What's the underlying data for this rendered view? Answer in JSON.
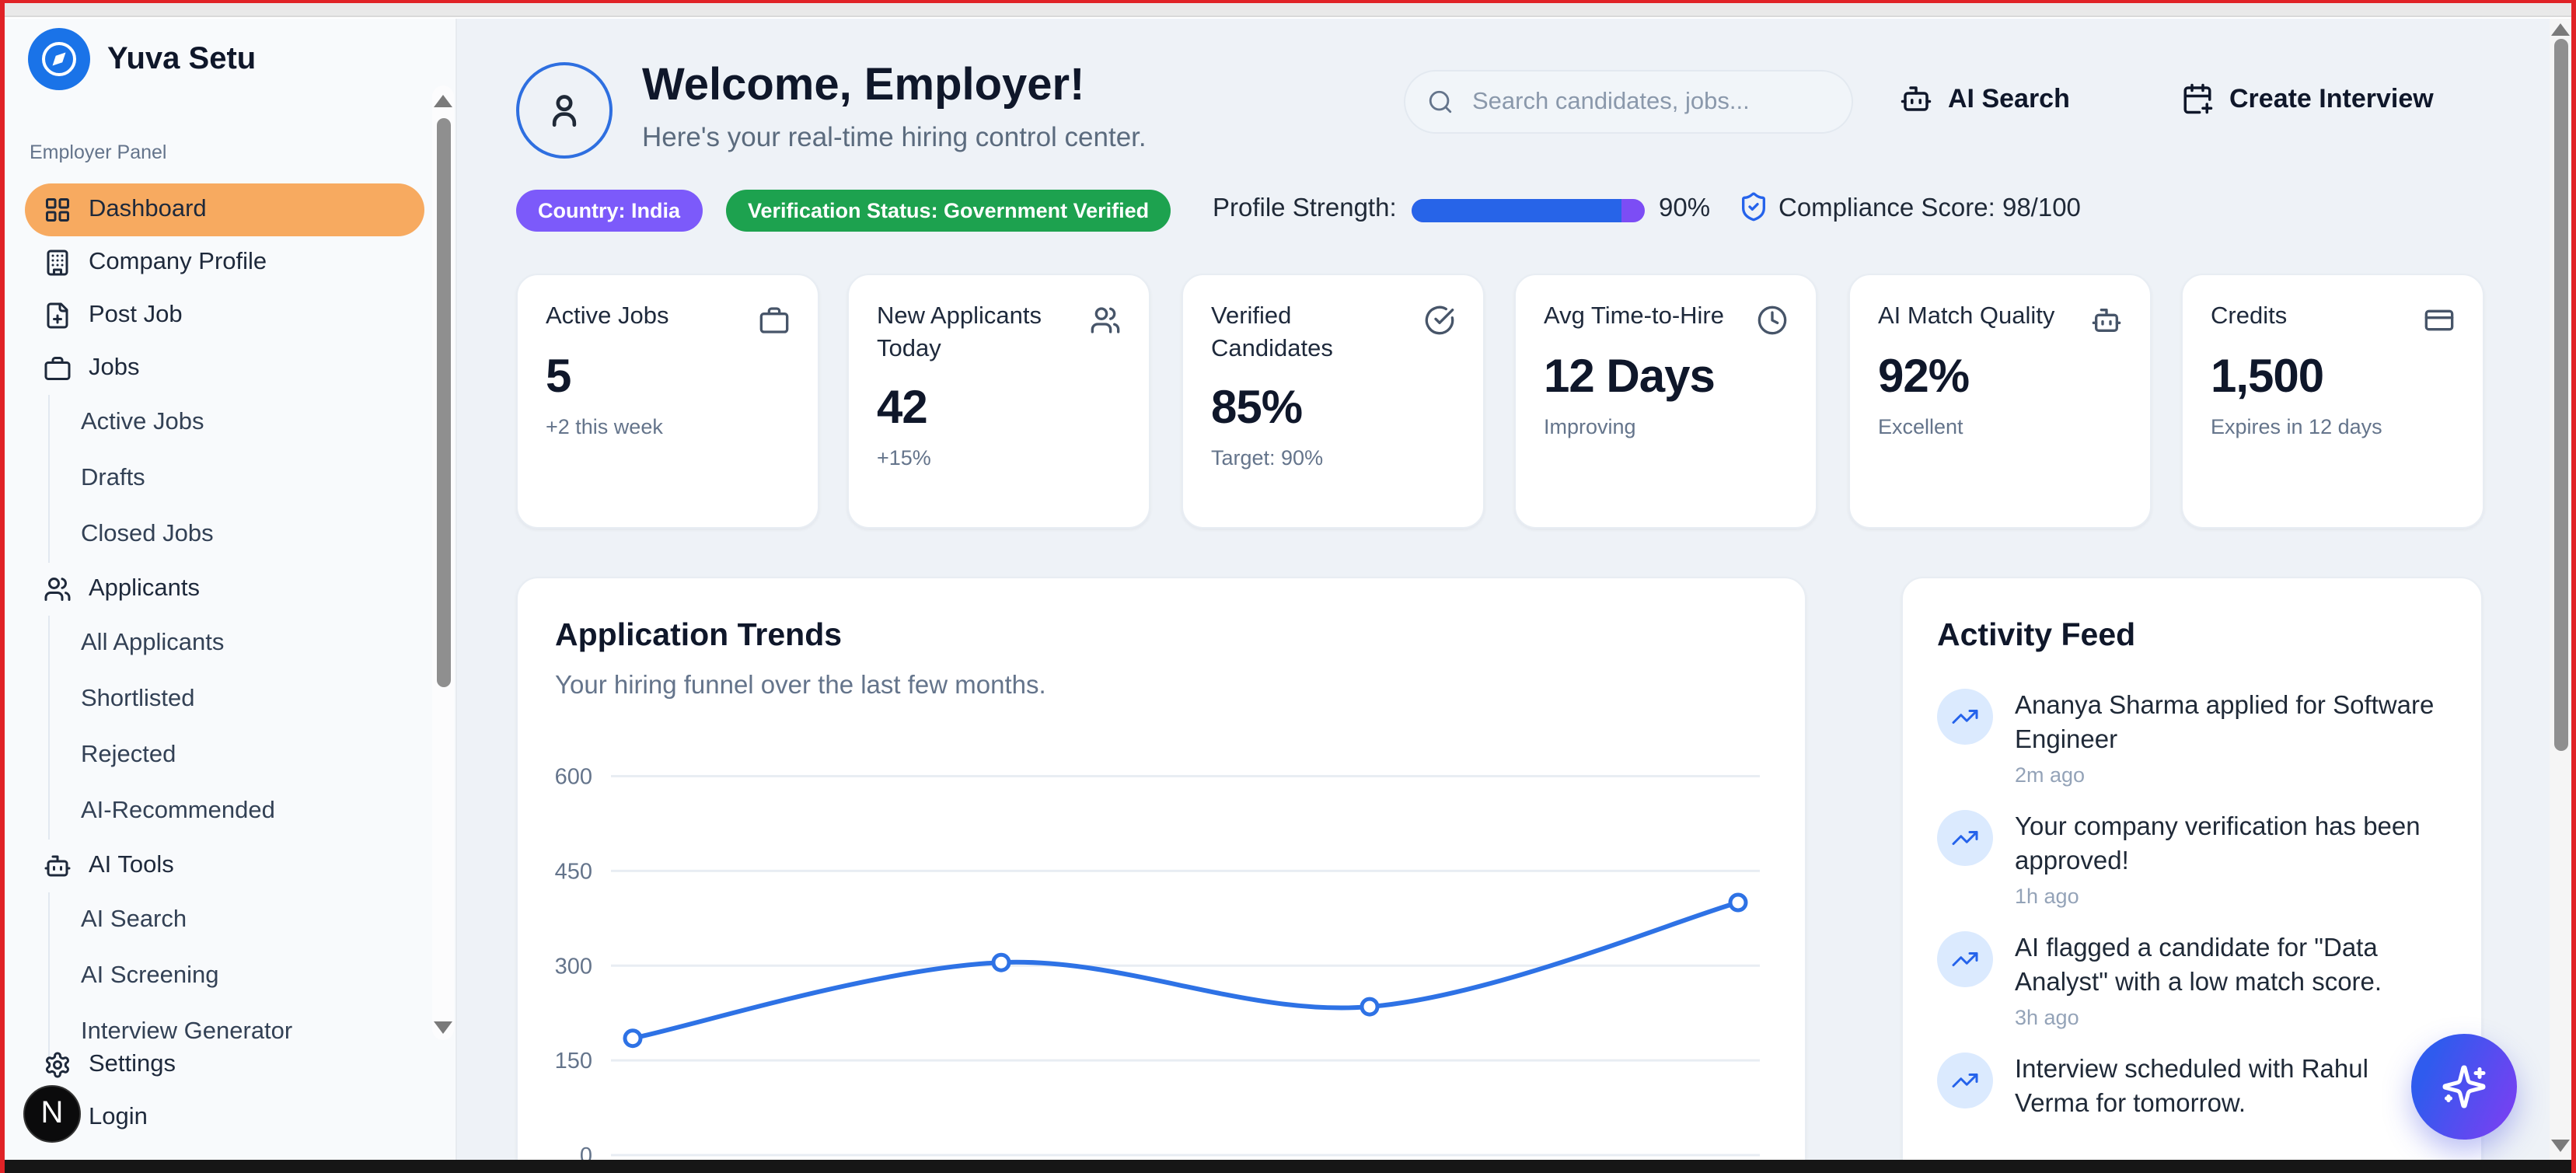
{
  "brand": {
    "name": "Yuva Setu"
  },
  "sidebar": {
    "section_label": "Employer Panel",
    "items": {
      "dashboard": "Dashboard",
      "company_profile": "Company Profile",
      "post_job": "Post Job",
      "jobs": "Jobs",
      "active_jobs": "Active Jobs",
      "drafts": "Drafts",
      "closed_jobs": "Closed Jobs",
      "applicants": "Applicants",
      "all_applicants": "All Applicants",
      "shortlisted": "Shortlisted",
      "rejected": "Rejected",
      "ai_recommended": "AI-Recommended",
      "ai_tools": "AI Tools",
      "ai_search": "AI Search",
      "ai_screening": "AI Screening",
      "interview_generator": "Interview Generator",
      "settings": "Settings",
      "login": "Login"
    },
    "dev_badge": "N"
  },
  "header": {
    "title": "Welcome, Employer!",
    "subtitle": "Here's your real-time hiring control center.",
    "search_placeholder": "Search candidates, jobs...",
    "ai_search_label": "AI Search",
    "create_interview_label": "Create Interview"
  },
  "badges": {
    "country": "Country: India",
    "verification": "Verification Status: Government Verified",
    "profile_strength_label": "Profile Strength:",
    "profile_strength_value": 90,
    "profile_strength_percent": "90%",
    "compliance": "Compliance Score: 98/100"
  },
  "stats": [
    {
      "title": "Active Jobs",
      "value": "5",
      "sub": "+2 this week",
      "icon": "briefcase-icon"
    },
    {
      "title": "New Applicants Today",
      "value": "42",
      "sub": "+15%",
      "icon": "users-icon"
    },
    {
      "title": "Verified Candidates",
      "value": "85%",
      "sub": "Target: 90%",
      "icon": "check-circle-icon"
    },
    {
      "title": "Avg Time-to-Hire",
      "value": "12 Days",
      "sub": "Improving",
      "icon": "clock-icon"
    },
    {
      "title": "AI Match Quality",
      "value": "92%",
      "sub": "Excellent",
      "icon": "bot-icon"
    },
    {
      "title": "Credits",
      "value": "1,500",
      "sub": "Expires in 12 days",
      "icon": "credit-card-icon"
    }
  ],
  "chart_data": {
    "type": "line",
    "title": "Application Trends",
    "subtitle": "Your hiring funnel over the last few months.",
    "x": [
      1,
      2,
      3,
      4
    ],
    "values": [
      185,
      305,
      235,
      400
    ],
    "yticks": [
      0,
      150,
      300,
      450,
      600
    ],
    "ylim": [
      0,
      640
    ],
    "grid": true,
    "legend": "none",
    "line_color": "#2e72e5",
    "marker": "open-circle",
    "xlabel": "",
    "ylabel": ""
  },
  "activity": {
    "title": "Activity Feed",
    "items": [
      {
        "text": "Ananya Sharma applied for Software Engineer",
        "time": "2m ago"
      },
      {
        "text": "Your company verification has been approved!",
        "time": "1h ago"
      },
      {
        "text": "AI flagged a candidate for \"Data Analyst\" with a low match score.",
        "time": "3h ago"
      },
      {
        "text": "Interview scheduled with Rahul Verma for tomorrow.",
        "time": ""
      }
    ]
  },
  "colors": {
    "accent_blue": "#1a73e8",
    "active_nav": "#f7aa60",
    "pill_purple": "#7c5afa",
    "pill_green": "#1da24f",
    "progress_fill": "#2764e8",
    "progress_track": "#7c4df5",
    "fab_gradient_start": "#2f5bee",
    "fab_gradient_end": "#7b3ff2",
    "frame_red": "#e02226"
  }
}
